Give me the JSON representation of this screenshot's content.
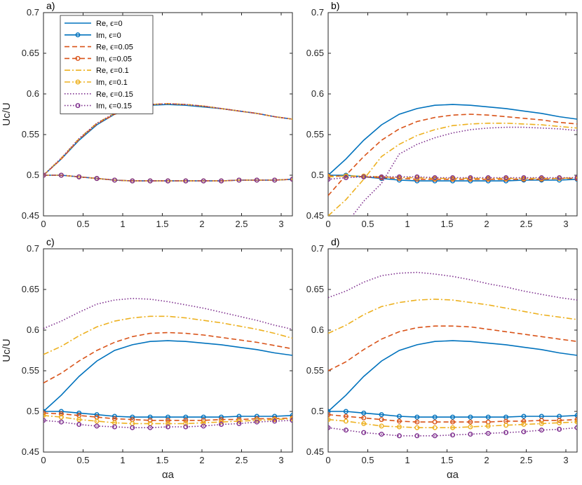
{
  "chart_data": [
    {
      "type": "line",
      "panel_label": "a)",
      "xlabel": "",
      "ylabel": "Uc/U",
      "xlim": [
        0,
        3.1416
      ],
      "ylim": [
        0.45,
        0.7
      ],
      "xticks": [
        "0",
        "0.5",
        "1",
        "1.5",
        "2",
        "2.5",
        "3"
      ],
      "yticks": [
        "0.45",
        "0.5",
        "0.55",
        "0.6",
        "0.65",
        "0.7"
      ],
      "legend": {
        "placement": "top-left",
        "entries": [
          "Re, ϵ=0",
          "Im, ϵ=0",
          "Re, ϵ=0.05",
          "Im, ϵ=0.05",
          "Re, ϵ=0.1",
          "Im, ϵ=0.1",
          "Re, ϵ=0.15",
          "Im, ϵ=0.15"
        ]
      },
      "x": [
        0,
        0.2244,
        0.4488,
        0.6732,
        0.8976,
        1.122,
        1.3464,
        1.5708,
        1.7952,
        2.0196,
        2.244,
        2.4684,
        2.6928,
        2.9172,
        3.1416
      ],
      "series": [
        {
          "name": "Re, ϵ=0",
          "values": [
            0.5,
            0.52,
            0.543,
            0.562,
            0.575,
            0.582,
            0.586,
            0.587,
            0.586,
            0.584,
            0.582,
            0.579,
            0.576,
            0.572,
            0.569
          ]
        },
        {
          "name": "Im, ϵ=0",
          "values": [
            0.5,
            0.5,
            0.498,
            0.496,
            0.494,
            0.493,
            0.493,
            0.493,
            0.493,
            0.493,
            0.493,
            0.494,
            0.494,
            0.494,
            0.495
          ]
        },
        {
          "name": "Re, ϵ=0.05",
          "values": [
            0.5,
            0.52,
            0.544,
            0.563,
            0.575,
            0.583,
            0.587,
            0.588,
            0.587,
            0.585,
            0.582,
            0.579,
            0.576,
            0.572,
            0.569
          ]
        },
        {
          "name": "Im, ϵ=0.05",
          "values": [
            0.5,
            0.5,
            0.498,
            0.496,
            0.494,
            0.493,
            0.493,
            0.493,
            0.493,
            0.493,
            0.493,
            0.494,
            0.494,
            0.494,
            0.495
          ]
        },
        {
          "name": "Re, ϵ=0.1",
          "values": [
            0.5,
            0.521,
            0.545,
            0.564,
            0.576,
            0.583,
            0.587,
            0.588,
            0.587,
            0.585,
            0.582,
            0.579,
            0.576,
            0.572,
            0.569
          ]
        },
        {
          "name": "Im, ϵ=0.1",
          "values": [
            0.5,
            0.5,
            0.498,
            0.496,
            0.494,
            0.493,
            0.493,
            0.493,
            0.493,
            0.493,
            0.493,
            0.494,
            0.494,
            0.494,
            0.495
          ]
        },
        {
          "name": "Re, ϵ=0.15",
          "values": [
            0.5,
            0.521,
            0.545,
            0.564,
            0.576,
            0.583,
            0.587,
            0.588,
            0.587,
            0.585,
            0.582,
            0.579,
            0.576,
            0.572,
            0.569
          ]
        },
        {
          "name": "Im, ϵ=0.15",
          "values": [
            0.5,
            0.5,
            0.498,
            0.496,
            0.494,
            0.493,
            0.493,
            0.493,
            0.493,
            0.493,
            0.493,
            0.494,
            0.494,
            0.494,
            0.495
          ]
        }
      ]
    },
    {
      "type": "line",
      "panel_label": "b)",
      "xlabel": "",
      "ylabel": "",
      "xlim": [
        0,
        3.1416
      ],
      "ylim": [
        0.45,
        0.7
      ],
      "xticks": [
        "0",
        "0.5",
        "1",
        "1.5",
        "2",
        "2.5",
        "3"
      ],
      "yticks": [
        "0.45",
        "0.5",
        "0.55",
        "0.6",
        "0.65",
        "0.7"
      ],
      "x": [
        0,
        0.2244,
        0.4488,
        0.6732,
        0.8976,
        1.122,
        1.3464,
        1.5708,
        1.7952,
        2.0196,
        2.244,
        2.4684,
        2.6928,
        2.9172,
        3.1416
      ],
      "series": [
        {
          "name": "Re, ϵ=0",
          "values": [
            0.5,
            0.52,
            0.543,
            0.562,
            0.575,
            0.582,
            0.586,
            0.587,
            0.586,
            0.584,
            0.582,
            0.579,
            0.576,
            0.572,
            0.569
          ]
        },
        {
          "name": "Im, ϵ=0",
          "values": [
            0.5,
            0.5,
            0.498,
            0.496,
            0.494,
            0.493,
            0.493,
            0.493,
            0.493,
            0.493,
            0.493,
            0.494,
            0.494,
            0.494,
            0.495
          ]
        },
        {
          "name": "Re, ϵ=0.05",
          "values": [
            0.475,
            0.5,
            0.523,
            0.543,
            0.557,
            0.566,
            0.571,
            0.574,
            0.575,
            0.574,
            0.572,
            0.57,
            0.568,
            0.565,
            0.563
          ]
        },
        {
          "name": "Im, ϵ=0.05",
          "values": [
            0.499,
            0.499,
            0.498,
            0.497,
            0.496,
            0.495,
            0.495,
            0.495,
            0.495,
            0.495,
            0.495,
            0.495,
            0.495,
            0.496,
            0.496
          ]
        },
        {
          "name": "Re, ϵ=0.1",
          "values": [
            0.45,
            0.47,
            0.495,
            0.523,
            0.538,
            0.549,
            0.556,
            0.561,
            0.563,
            0.564,
            0.564,
            0.563,
            0.562,
            0.56,
            0.558
          ]
        },
        {
          "name": "Im, ϵ=0.1",
          "values": [
            0.498,
            0.499,
            0.499,
            0.498,
            0.497,
            0.497,
            0.496,
            0.496,
            0.496,
            0.496,
            0.496,
            0.496,
            0.496,
            0.496,
            0.497
          ]
        },
        {
          "name": "Re, ϵ=0.15",
          "values": [
            0.42,
            0.44,
            0.468,
            0.49,
            0.526,
            0.538,
            0.546,
            0.552,
            0.556,
            0.558,
            0.559,
            0.559,
            0.558,
            0.557,
            0.555
          ]
        },
        {
          "name": "Im, ϵ=0.15",
          "values": [
            0.495,
            0.497,
            0.498,
            0.498,
            0.498,
            0.498,
            0.497,
            0.497,
            0.497,
            0.497,
            0.497,
            0.497,
            0.497,
            0.497,
            0.497
          ]
        }
      ]
    },
    {
      "type": "line",
      "panel_label": "c)",
      "xlabel": "αa",
      "ylabel": "Uc/U",
      "xlim": [
        0,
        3.1416
      ],
      "ylim": [
        0.45,
        0.7
      ],
      "xticks": [
        "0",
        "0.5",
        "1",
        "1.5",
        "2",
        "2.5",
        "3"
      ],
      "yticks": [
        "0.45",
        "0.5",
        "0.55",
        "0.6",
        "0.65",
        "0.7"
      ],
      "x": [
        0,
        0.2244,
        0.4488,
        0.6732,
        0.8976,
        1.122,
        1.3464,
        1.5708,
        1.7952,
        2.0196,
        2.244,
        2.4684,
        2.6928,
        2.9172,
        3.1416
      ],
      "series": [
        {
          "name": "Re, ϵ=0",
          "values": [
            0.5,
            0.52,
            0.543,
            0.562,
            0.575,
            0.582,
            0.586,
            0.587,
            0.586,
            0.584,
            0.582,
            0.579,
            0.576,
            0.572,
            0.569
          ]
        },
        {
          "name": "Im, ϵ=0",
          "values": [
            0.5,
            0.5,
            0.498,
            0.496,
            0.494,
            0.493,
            0.493,
            0.493,
            0.493,
            0.493,
            0.493,
            0.494,
            0.494,
            0.494,
            0.495
          ]
        },
        {
          "name": "Re, ϵ=0.05",
          "values": [
            0.535,
            0.547,
            0.562,
            0.575,
            0.585,
            0.592,
            0.596,
            0.597,
            0.596,
            0.594,
            0.591,
            0.588,
            0.585,
            0.581,
            0.577
          ]
        },
        {
          "name": "Im, ϵ=0.05",
          "values": [
            0.498,
            0.497,
            0.495,
            0.493,
            0.491,
            0.49,
            0.489,
            0.489,
            0.489,
            0.489,
            0.49,
            0.49,
            0.491,
            0.491,
            0.492
          ]
        },
        {
          "name": "Re, ϵ=0.1",
          "values": [
            0.57,
            0.58,
            0.593,
            0.604,
            0.611,
            0.615,
            0.617,
            0.617,
            0.615,
            0.612,
            0.609,
            0.605,
            0.601,
            0.596,
            0.59
          ]
        },
        {
          "name": "Im, ϵ=0.1",
          "values": [
            0.495,
            0.493,
            0.49,
            0.488,
            0.486,
            0.485,
            0.485,
            0.485,
            0.485,
            0.486,
            0.487,
            0.488,
            0.489,
            0.49,
            0.491
          ]
        },
        {
          "name": "Re, ϵ=0.15",
          "values": [
            0.602,
            0.611,
            0.622,
            0.632,
            0.637,
            0.639,
            0.638,
            0.635,
            0.631,
            0.627,
            0.622,
            0.617,
            0.612,
            0.606,
            0.601
          ]
        },
        {
          "name": "Im, ϵ=0.15",
          "values": [
            0.489,
            0.487,
            0.484,
            0.482,
            0.481,
            0.48,
            0.48,
            0.481,
            0.481,
            0.482,
            0.484,
            0.485,
            0.487,
            0.488,
            0.489
          ]
        }
      ]
    },
    {
      "type": "line",
      "panel_label": "d)",
      "xlabel": "αa",
      "ylabel": "",
      "xlim": [
        0,
        3.1416
      ],
      "ylim": [
        0.45,
        0.7
      ],
      "xticks": [
        "0",
        "0.5",
        "1",
        "1.5",
        "2",
        "2.5",
        "3"
      ],
      "yticks": [
        "0.45",
        "0.5",
        "0.55",
        "0.6",
        "0.65",
        "0.7"
      ],
      "x": [
        0,
        0.2244,
        0.4488,
        0.6732,
        0.8976,
        1.122,
        1.3464,
        1.5708,
        1.7952,
        2.0196,
        2.244,
        2.4684,
        2.6928,
        2.9172,
        3.1416
      ],
      "series": [
        {
          "name": "Re, ϵ=0",
          "values": [
            0.5,
            0.52,
            0.543,
            0.562,
            0.575,
            0.582,
            0.586,
            0.587,
            0.586,
            0.584,
            0.582,
            0.579,
            0.576,
            0.572,
            0.569
          ]
        },
        {
          "name": "Im, ϵ=0",
          "values": [
            0.5,
            0.5,
            0.498,
            0.496,
            0.494,
            0.493,
            0.493,
            0.493,
            0.493,
            0.493,
            0.493,
            0.494,
            0.494,
            0.494,
            0.495
          ]
        },
        {
          "name": "Re, ϵ=0.05",
          "values": [
            0.55,
            0.561,
            0.576,
            0.589,
            0.598,
            0.603,
            0.605,
            0.605,
            0.604,
            0.601,
            0.598,
            0.595,
            0.592,
            0.589,
            0.586
          ]
        },
        {
          "name": "Im, ϵ=0.05",
          "values": [
            0.496,
            0.494,
            0.492,
            0.49,
            0.488,
            0.487,
            0.487,
            0.487,
            0.487,
            0.487,
            0.488,
            0.488,
            0.489,
            0.489,
            0.49
          ]
        },
        {
          "name": "Re, ϵ=0.1",
          "values": [
            0.596,
            0.606,
            0.619,
            0.629,
            0.634,
            0.637,
            0.638,
            0.637,
            0.634,
            0.631,
            0.627,
            0.623,
            0.619,
            0.616,
            0.613
          ]
        },
        {
          "name": "Im, ϵ=0.1",
          "values": [
            0.49,
            0.488,
            0.485,
            0.482,
            0.481,
            0.48,
            0.48,
            0.48,
            0.481,
            0.482,
            0.483,
            0.484,
            0.485,
            0.486,
            0.487
          ]
        },
        {
          "name": "Re, ϵ=0.15",
          "values": [
            0.64,
            0.648,
            0.659,
            0.667,
            0.67,
            0.671,
            0.669,
            0.666,
            0.662,
            0.657,
            0.653,
            0.648,
            0.644,
            0.64,
            0.637
          ]
        },
        {
          "name": "Im, ϵ=0.15",
          "values": [
            0.48,
            0.477,
            0.474,
            0.472,
            0.47,
            0.47,
            0.47,
            0.471,
            0.472,
            0.473,
            0.474,
            0.475,
            0.477,
            0.478,
            0.48
          ]
        }
      ]
    }
  ],
  "series_styles": [
    {
      "color": "#0072BD",
      "dash": "",
      "marker": false
    },
    {
      "color": "#0072BD",
      "dash": "",
      "marker": true
    },
    {
      "color": "#D95319",
      "dash": "7,4",
      "marker": false
    },
    {
      "color": "#D95319",
      "dash": "7,4",
      "marker": true
    },
    {
      "color": "#EDB120",
      "dash": "8,3,2,3",
      "marker": false
    },
    {
      "color": "#EDB120",
      "dash": "8,3,2,3",
      "marker": true
    },
    {
      "color": "#7E2F8E",
      "dash": "1.5,2.5",
      "marker": false
    },
    {
      "color": "#7E2F8E",
      "dash": "1.5,2.5",
      "marker": true
    }
  ]
}
